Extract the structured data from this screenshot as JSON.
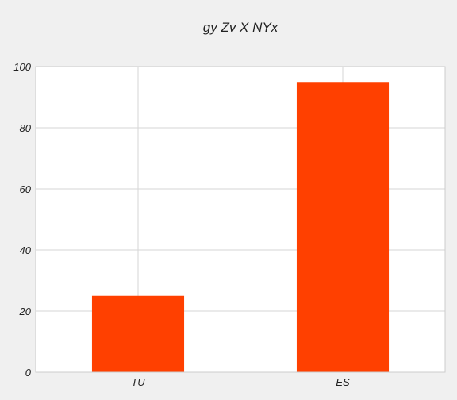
{
  "chart_data": {
    "type": "bar",
    "title": "gy Zv  X NYx",
    "categories": [
      "TU",
      "ES"
    ],
    "values": [
      25,
      95
    ],
    "xlabel": "",
    "ylabel": "",
    "ylim": [
      0,
      100
    ],
    "yticks": [
      0,
      20,
      40,
      60,
      80,
      100
    ],
    "grid": true,
    "bar_color": "#ff4000",
    "grid_color": "#d5d5d5",
    "plot_background": "#ffffff",
    "figure_background": "#f0f0f0"
  }
}
